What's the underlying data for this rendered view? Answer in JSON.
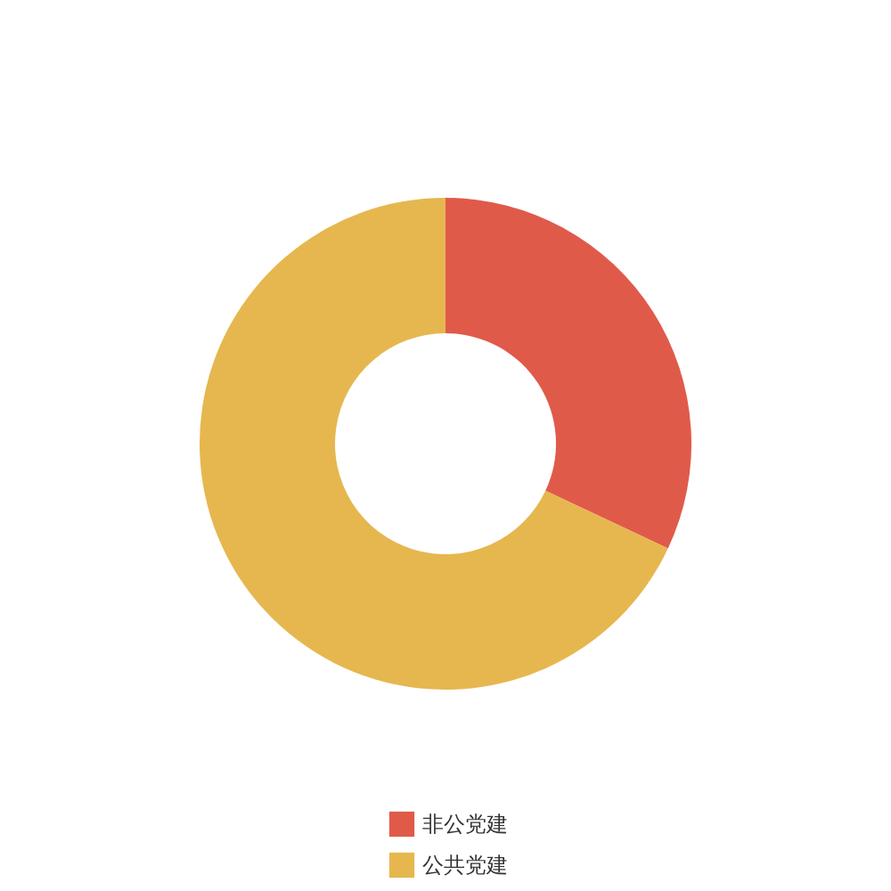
{
  "chart_data": {
    "type": "donut",
    "categories": [
      "非公党建",
      "公共党建"
    ],
    "values": [
      32,
      68
    ],
    "colors": [
      "#e05a4a",
      "#e6b74f"
    ],
    "legend": "bottom"
  }
}
